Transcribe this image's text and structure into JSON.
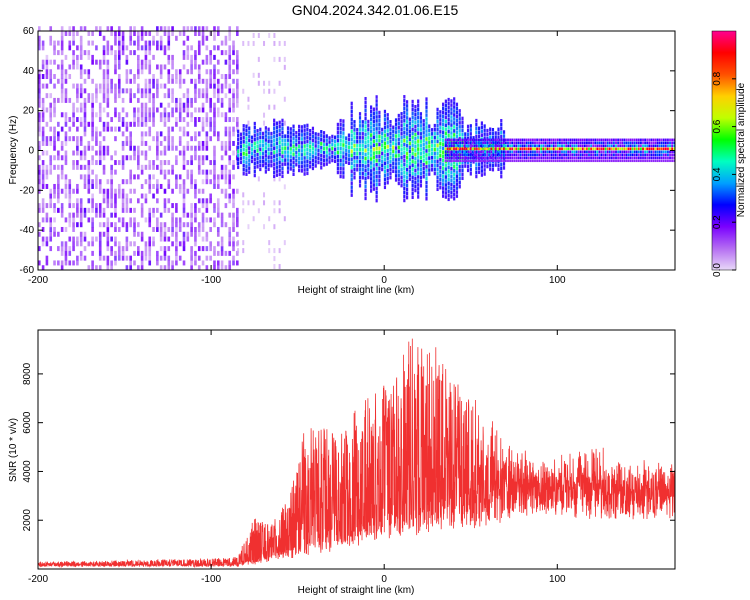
{
  "title": "GN04.2024.342.01.06.E15",
  "chart_data": [
    {
      "type": "heatmap",
      "xlabel": "Height of straight line (km)",
      "ylabel": "Frequency (Hz)",
      "xlim": [
        -200,
        168
      ],
      "ylim": [
        -60,
        60
      ],
      "xticks": [
        -200,
        -100,
        0,
        100
      ],
      "yticks": [
        -60,
        -40,
        -20,
        0,
        20,
        40,
        60
      ],
      "colorbar": {
        "label": "Normalized spectral amplitude",
        "range": [
          0.0,
          1.0
        ],
        "ticks": [
          0.0,
          0.2,
          0.4,
          0.6,
          0.8
        ],
        "colors": [
          "#e8d8f8",
          "#b46cf2",
          "#7a00ff",
          "#0000ff",
          "#00a0ff",
          "#00ffc0",
          "#00ff00",
          "#c0ff00",
          "#ffd000",
          "#ff5000",
          "#ff0000",
          "#ff0090"
        ]
      },
      "regions": [
        {
          "name": "noise",
          "x": [
            -200,
            -85
          ],
          "freq_halfwidth": 60,
          "amplitude": 0.15
        },
        {
          "name": "transition",
          "x": [
            -85,
            -55
          ],
          "freq_halfwidth": 60,
          "amplitude": 0.05
        },
        {
          "name": "broadband",
          "x": [
            -85,
            70
          ],
          "freq_halfwidth": 15,
          "amplitude": 0.35
        },
        {
          "name": "peak",
          "x": [
            -20,
            45
          ],
          "freq_halfwidth": 28,
          "amplitude": 0.45
        },
        {
          "name": "tonal",
          "x": [
            35,
            168
          ],
          "freq_halfwidth": 4,
          "amplitude": 0.9
        }
      ],
      "grid": false
    },
    {
      "type": "line",
      "xlabel": "Height of straight line (km)",
      "ylabel": "SNR (10 * v/v)",
      "xlim": [
        -200,
        168
      ],
      "ylim": [
        0,
        9800
      ],
      "xticks": [
        -200,
        -100,
        0,
        100
      ],
      "yticks": [
        2000,
        4000,
        6000,
        8000
      ],
      "color": "#f03030",
      "envelope": {
        "x": [
          -200,
          -150,
          -100,
          -85,
          -75,
          -65,
          -55,
          -45,
          -35,
          -25,
          -15,
          -5,
          5,
          15,
          25,
          35,
          45,
          55,
          65,
          75,
          85,
          100,
          120,
          140,
          168
        ],
        "lower": [
          150,
          150,
          150,
          150,
          300,
          500,
          700,
          900,
          1100,
          1300,
          1500,
          1800,
          2000,
          2200,
          2300,
          2400,
          2500,
          2700,
          3000,
          3400,
          3500,
          3500,
          3400,
          3300,
          3300
        ],
        "upper": [
          300,
          350,
          450,
          500,
          2100,
          1900,
          2900,
          6200,
          5800,
          6000,
          6800,
          7200,
          7800,
          9500,
          9700,
          8500,
          7800,
          6400,
          5800,
          5000,
          4400,
          4400,
          4900,
          4300,
          4200
        ]
      }
    }
  ]
}
